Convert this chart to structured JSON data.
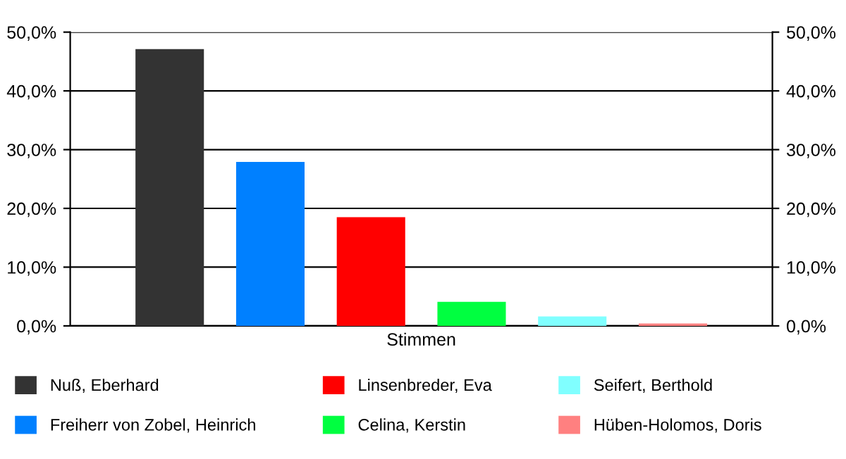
{
  "chart_data": {
    "type": "bar",
    "categories": [
      "Stimmen"
    ],
    "series": [
      {
        "name": "Nuß, Eberhard",
        "color": "#333333",
        "values": [
          47.1
        ]
      },
      {
        "name": "Freiherr von Zobel, Heinrich",
        "color": "#0080ff",
        "values": [
          27.9
        ]
      },
      {
        "name": "Linsenbreder, Eva",
        "color": "#ff0000",
        "values": [
          18.5
        ]
      },
      {
        "name": "Celina, Kerstin",
        "color": "#00ff40",
        "values": [
          4.1
        ]
      },
      {
        "name": "Seifert, Berthold",
        "color": "#80ffff",
        "values": [
          1.6
        ]
      },
      {
        "name": "Hüben-Holomos, Doris",
        "color": "#ff8080",
        "values": [
          0.4
        ]
      }
    ],
    "ylim": [
      0,
      50
    ],
    "yticks": [
      {
        "value": 0,
        "label": "0,0%"
      },
      {
        "value": 10,
        "label": "10,0%"
      },
      {
        "value": 20,
        "label": "20,0%"
      },
      {
        "value": 30,
        "label": "30,0%"
      },
      {
        "value": 40,
        "label": "40,0%"
      },
      {
        "value": 50,
        "label": "50,0%"
      }
    ],
    "grid": "y",
    "legend": "bottom"
  }
}
